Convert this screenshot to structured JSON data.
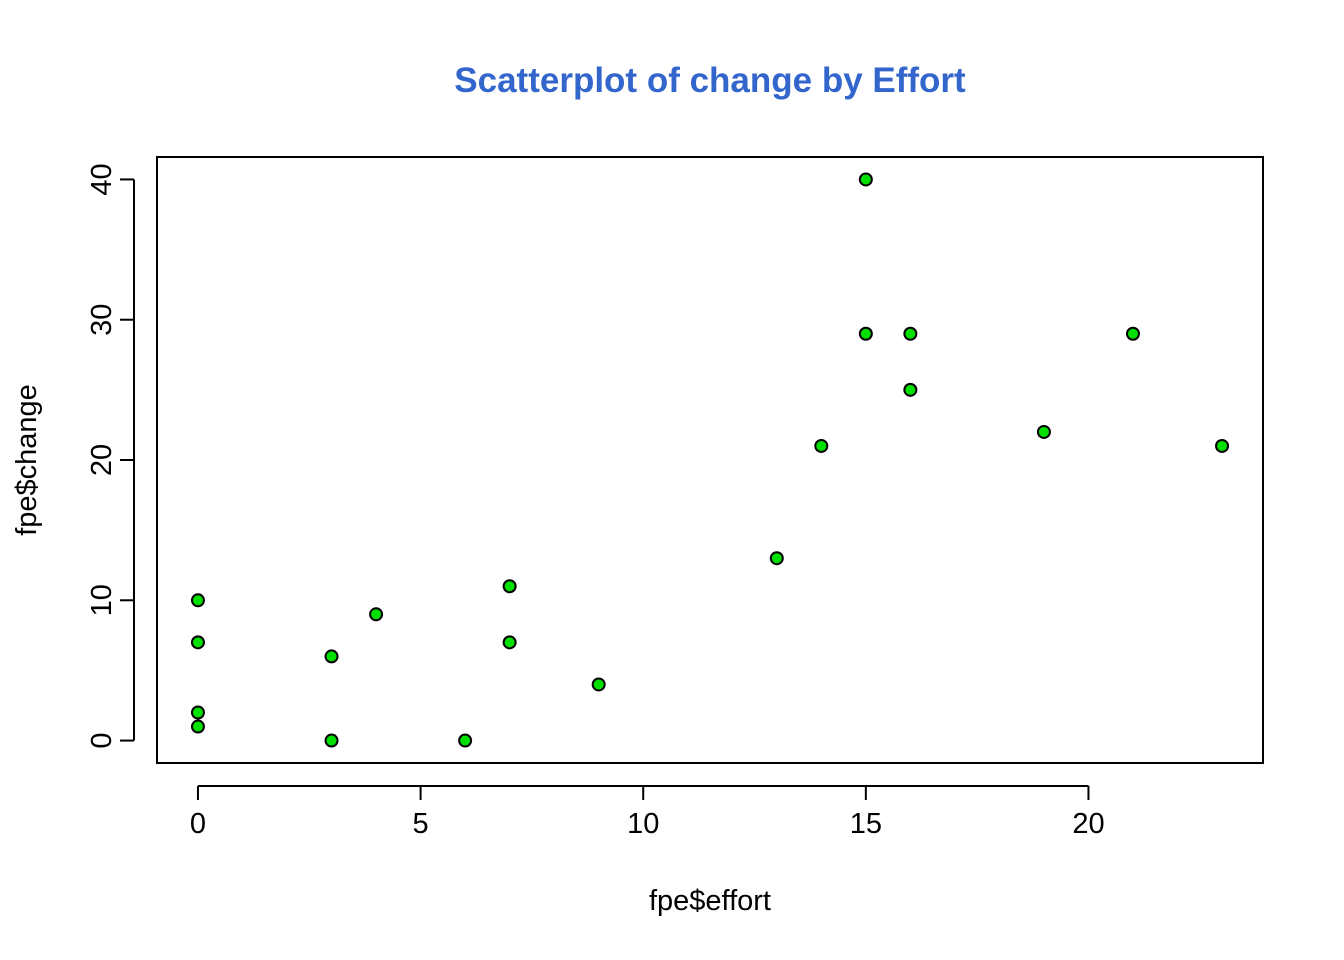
{
  "colors": {
    "title": "#3366cc",
    "point_fill": "#00e000",
    "point_stroke": "#000000",
    "axis": "#000000",
    "background": "#ffffff"
  },
  "chart_data": {
    "type": "scatter",
    "title": "Scatterplot of change by Effort",
    "xlabel": "fpe$effort",
    "ylabel": "fpe$change",
    "xlim": [
      -0.92,
      23.92
    ],
    "ylim": [
      -1.6,
      41.6
    ],
    "xticks": [
      0,
      5,
      10,
      15,
      20
    ],
    "yticks": [
      0,
      10,
      20,
      30,
      40
    ],
    "xtick_labels": [
      "0",
      "5",
      "10",
      "15",
      "20"
    ],
    "ytick_labels": [
      "0",
      "10",
      "20",
      "30",
      "40"
    ],
    "grid": false,
    "legend": "none",
    "series": [
      {
        "name": "fpe",
        "x": [
          0,
          0,
          0,
          0,
          3,
          3,
          4,
          6,
          7,
          7,
          9,
          13,
          14,
          15,
          15,
          16,
          16,
          19,
          21,
          23
        ],
        "y": [
          10,
          7,
          2,
          1,
          6,
          0,
          9,
          0,
          11,
          7,
          4,
          13,
          21,
          40,
          29,
          29,
          25,
          22,
          29,
          21
        ]
      }
    ]
  }
}
